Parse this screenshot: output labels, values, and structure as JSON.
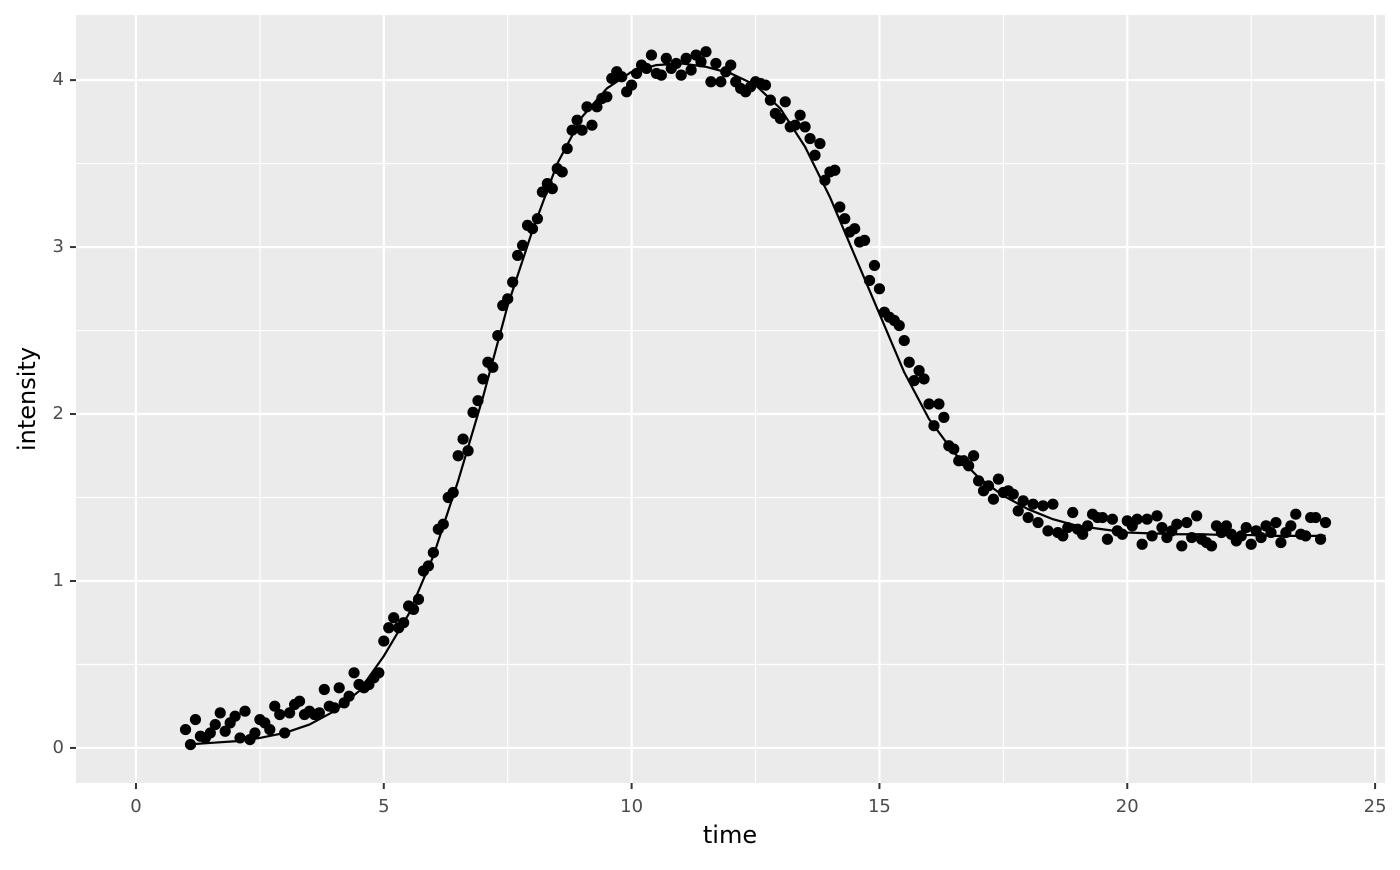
{
  "chart_data": {
    "type": "scatter",
    "x_label": "time",
    "y_label": "intensity",
    "xlim": [
      -1.21,
      25.2
    ],
    "ylim": [
      -0.21,
      4.39
    ],
    "xticks": [
      0,
      5,
      10,
      15,
      20,
      25
    ],
    "yticks": [
      0,
      1,
      2,
      3,
      4
    ],
    "grid": true,
    "series": [
      {
        "type": "points",
        "color": "#000000",
        "x": [
          1,
          1.1,
          1.2,
          1.3,
          1.4,
          1.5,
          1.6,
          1.7,
          1.8,
          1.9,
          2,
          2.1,
          2.2,
          2.3,
          2.4,
          2.5,
          2.6,
          2.7,
          2.8,
          2.9,
          3,
          3.1,
          3.2,
          3.3,
          3.4,
          3.5,
          3.6,
          3.7,
          3.8,
          3.9,
          4,
          4.1,
          4.2,
          4.3,
          4.4,
          4.5,
          4.6,
          4.7,
          4.8,
          4.9,
          5,
          5.1,
          5.2,
          5.3,
          5.4,
          5.5,
          5.6,
          5.7,
          5.8,
          5.9,
          6,
          6.1,
          6.2,
          6.3,
          6.4,
          6.5,
          6.6,
          6.7,
          6.8,
          6.9,
          7,
          7.1,
          7.2,
          7.3,
          7.4,
          7.5,
          7.6,
          7.7,
          7.8,
          7.9,
          8,
          8.1,
          8.2,
          8.3,
          8.4,
          8.5,
          8.6,
          8.7,
          8.8,
          8.9,
          9,
          9.1,
          9.2,
          9.3,
          9.4,
          9.5,
          9.6,
          9.7,
          9.8,
          9.9,
          10,
          10.1,
          10.2,
          10.3,
          10.4,
          10.5,
          10.6,
          10.7,
          10.8,
          10.9,
          11,
          11.1,
          11.2,
          11.3,
          11.4,
          11.5,
          11.6,
          11.7,
          11.8,
          11.9,
          12,
          12.1,
          12.2,
          12.3,
          12.4,
          12.5,
          12.6,
          12.7,
          12.8,
          12.9,
          13,
          13.1,
          13.2,
          13.3,
          13.4,
          13.5,
          13.6,
          13.7,
          13.8,
          13.9,
          14,
          14.1,
          14.2,
          14.3,
          14.4,
          14.5,
          14.6,
          14.7,
          14.8,
          14.9,
          15,
          15.1,
          15.2,
          15.3,
          15.4,
          15.5,
          15.6,
          15.7,
          15.8,
          15.9,
          16,
          16.1,
          16.2,
          16.3,
          16.4,
          16.5,
          16.6,
          16.7,
          16.8,
          16.9,
          17,
          17.1,
          17.2,
          17.3,
          17.4,
          17.5,
          17.6,
          17.7,
          17.8,
          17.9,
          18,
          18.1,
          18.2,
          18.3,
          18.4,
          18.5,
          18.6,
          18.7,
          18.8,
          18.9,
          19,
          19.1,
          19.2,
          19.3,
          19.4,
          19.5,
          19.6,
          19.7,
          19.8,
          19.9,
          20,
          20.1,
          20.2,
          20.3,
          20.4,
          20.5,
          20.6,
          20.7,
          20.8,
          20.9,
          21,
          21.1,
          21.2,
          21.3,
          21.4,
          21.5,
          21.6,
          21.7,
          21.8,
          21.9,
          22,
          22.1,
          22.2,
          22.3,
          22.4,
          22.5,
          22.6,
          22.7,
          22.8,
          22.9,
          23,
          23.1,
          23.2,
          23.3,
          23.4,
          23.5,
          23.6,
          23.7,
          23.8,
          23.9,
          24
        ],
        "values": [
          0.11,
          0.02,
          0.17,
          0.07,
          0.06,
          0.09,
          0.14,
          0.21,
          0.1,
          0.15,
          0.19,
          0.06,
          0.22,
          0.05,
          0.09,
          0.17,
          0.15,
          0.11,
          0.25,
          0.2,
          0.09,
          0.21,
          0.26,
          0.28,
          0.2,
          0.22,
          0.2,
          0.21,
          0.35,
          0.25,
          0.24,
          0.36,
          0.27,
          0.31,
          0.45,
          0.38,
          0.36,
          0.38,
          0.42,
          0.45,
          0.64,
          0.72,
          0.78,
          0.72,
          0.75,
          0.85,
          0.83,
          0.89,
          1.06,
          1.09,
          1.17,
          1.31,
          1.34,
          1.5,
          1.53,
          1.75,
          1.85,
          1.78,
          2.01,
          2.08,
          2.21,
          2.31,
          2.28,
          2.47,
          2.65,
          2.69,
          2.79,
          2.95,
          3.01,
          3.13,
          3.11,
          3.17,
          3.33,
          3.38,
          3.35,
          3.47,
          3.45,
          3.59,
          3.7,
          3.76,
          3.7,
          3.84,
          3.73,
          3.84,
          3.89,
          3.9,
          4.01,
          4.05,
          4.02,
          3.93,
          3.97,
          4.04,
          4.09,
          4.07,
          4.15,
          4.04,
          4.03,
          4.13,
          4.07,
          4.1,
          4.03,
          4.13,
          4.06,
          4.15,
          4.11,
          4.17,
          3.99,
          4.1,
          3.99,
          4.05,
          4.09,
          3.99,
          3.95,
          3.93,
          3.96,
          3.99,
          3.98,
          3.97,
          3.88,
          3.8,
          3.77,
          3.87,
          3.72,
          3.73,
          3.79,
          3.72,
          3.65,
          3.55,
          3.62,
          3.4,
          3.45,
          3.46,
          3.24,
          3.17,
          3.09,
          3.11,
          3.03,
          3.04,
          2.8,
          2.89,
          2.75,
          2.61,
          2.58,
          2.56,
          2.53,
          2.44,
          2.31,
          2.2,
          2.26,
          2.21,
          2.06,
          1.93,
          2.06,
          1.98,
          1.81,
          1.79,
          1.72,
          1.72,
          1.69,
          1.75,
          1.6,
          1.54,
          1.57,
          1.49,
          1.61,
          1.53,
          1.54,
          1.52,
          1.42,
          1.48,
          1.38,
          1.46,
          1.35,
          1.45,
          1.3,
          1.46,
          1.29,
          1.27,
          1.32,
          1.41,
          1.31,
          1.28,
          1.33,
          1.4,
          1.38,
          1.38,
          1.25,
          1.37,
          1.3,
          1.28,
          1.36,
          1.33,
          1.37,
          1.22,
          1.37,
          1.27,
          1.39,
          1.32,
          1.26,
          1.3,
          1.34,
          1.21,
          1.35,
          1.26,
          1.39,
          1.25,
          1.23,
          1.21,
          1.33,
          1.29,
          1.33,
          1.28,
          1.24,
          1.27,
          1.32,
          1.22,
          1.3,
          1.26,
          1.33,
          1.29,
          1.35,
          1.23,
          1.29,
          1.33,
          1.4,
          1.28,
          1.27,
          1.38,
          1.38,
          1.25,
          1.35
        ]
      },
      {
        "type": "line",
        "color": "#000000",
        "x": [
          1,
          1.5,
          2,
          2.5,
          3,
          3.5,
          4,
          4.5,
          5,
          5.5,
          6,
          6.5,
          7,
          7.5,
          8,
          8.5,
          9,
          9.5,
          10,
          10.5,
          11,
          11.5,
          12,
          12.5,
          13,
          13.5,
          14,
          14.5,
          15,
          15.5,
          16,
          16.5,
          17,
          17.5,
          18,
          18.5,
          19,
          19.5,
          20,
          20.5,
          21,
          21.5,
          22,
          22.5,
          23,
          23.5,
          24
        ],
        "values": [
          0.02,
          0.03,
          0.04,
          0.06,
          0.09,
          0.14,
          0.22,
          0.34,
          0.55,
          0.8,
          1.15,
          1.6,
          2.1,
          2.65,
          3.1,
          3.5,
          3.78,
          3.95,
          4.05,
          4.09,
          4.1,
          4.08,
          4.04,
          3.97,
          3.83,
          3.6,
          3.3,
          2.95,
          2.6,
          2.25,
          1.97,
          1.77,
          1.62,
          1.51,
          1.43,
          1.37,
          1.33,
          1.31,
          1.29,
          1.285,
          1.28,
          1.28,
          1.275,
          1.275,
          1.27,
          1.27,
          1.27
        ]
      }
    ]
  }
}
